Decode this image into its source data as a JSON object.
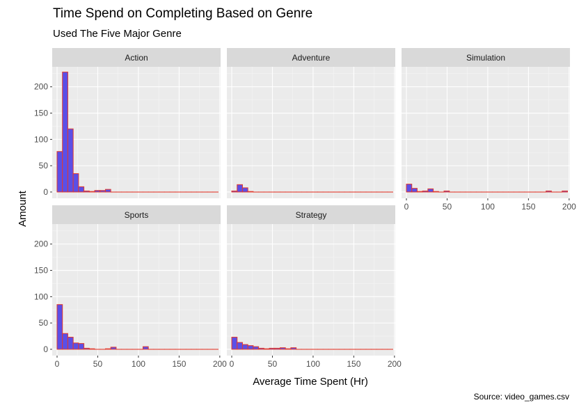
{
  "chart_data": {
    "type": "bar",
    "title": "Time Spend on Completing Based on Genre",
    "subtitle": "Used The Five Major Genre",
    "xlabel": "Average Time Spent (Hr)",
    "ylabel": "Amount",
    "caption": "Source: video_games.csv",
    "xlim": [
      -6,
      201
    ],
    "ylim": [
      -12,
      238
    ],
    "x_ticks": [
      0,
      50,
      100,
      150,
      200
    ],
    "y_ticks": [
      0,
      50,
      100,
      150,
      200
    ],
    "bin_width": 6.6,
    "grid": true,
    "bar_fill": "#5b4fe6",
    "bar_outline": "#e23a2e",
    "panel_bg": "#ebebeb",
    "strip_bg": "#d9d9d9",
    "categories": [
      "0",
      "6.6",
      "13.2",
      "19.8",
      "26.4",
      "33",
      "39.6",
      "46.2",
      "52.8",
      "59.4",
      "66",
      "72.6",
      "79.2",
      "85.8",
      "92.4",
      "99",
      "105.6",
      "112.2",
      "118.8",
      "125.4",
      "132",
      "138.6",
      "145.2",
      "151.8",
      "158.4",
      "165",
      "171.6",
      "178.2",
      "184.8",
      "191.4"
    ],
    "series": [
      {
        "name": "Action",
        "values": [
          77,
          228,
          120,
          35,
          10,
          2,
          1,
          3,
          3,
          5,
          0,
          0,
          0,
          0,
          0,
          0,
          0,
          0,
          0,
          0,
          0,
          0,
          0,
          0,
          0,
          0,
          0,
          0,
          0,
          0
        ]
      },
      {
        "name": "Adventure",
        "values": [
          2,
          14,
          8,
          1,
          0,
          0,
          0,
          0,
          0,
          0,
          0,
          0,
          0,
          0,
          0,
          0,
          0,
          0,
          0,
          0,
          0,
          0,
          0,
          0,
          0,
          0,
          0,
          0,
          0,
          0
        ]
      },
      {
        "name": "Simulation",
        "values": [
          15,
          7,
          1,
          2,
          6,
          1,
          0,
          2,
          0,
          0,
          0,
          0,
          0,
          0,
          0,
          0,
          0,
          0,
          0,
          0,
          0,
          0,
          0,
          0,
          0,
          0,
          2,
          0,
          0,
          2
        ]
      },
      {
        "name": "Sports",
        "values": [
          85,
          30,
          23,
          12,
          11,
          2,
          1,
          0,
          0,
          1,
          4,
          0,
          0,
          0,
          0,
          0,
          5,
          0,
          0,
          0,
          0,
          0,
          0,
          0,
          0,
          0,
          0,
          0,
          0,
          0
        ]
      },
      {
        "name": "Strategy",
        "values": [
          23,
          13,
          9,
          7,
          5,
          2,
          1,
          2,
          2,
          3,
          1,
          3,
          0,
          0,
          0,
          0,
          0,
          0,
          0,
          0,
          0,
          0,
          0,
          0,
          0,
          0,
          0,
          0,
          0,
          0
        ]
      }
    ]
  }
}
